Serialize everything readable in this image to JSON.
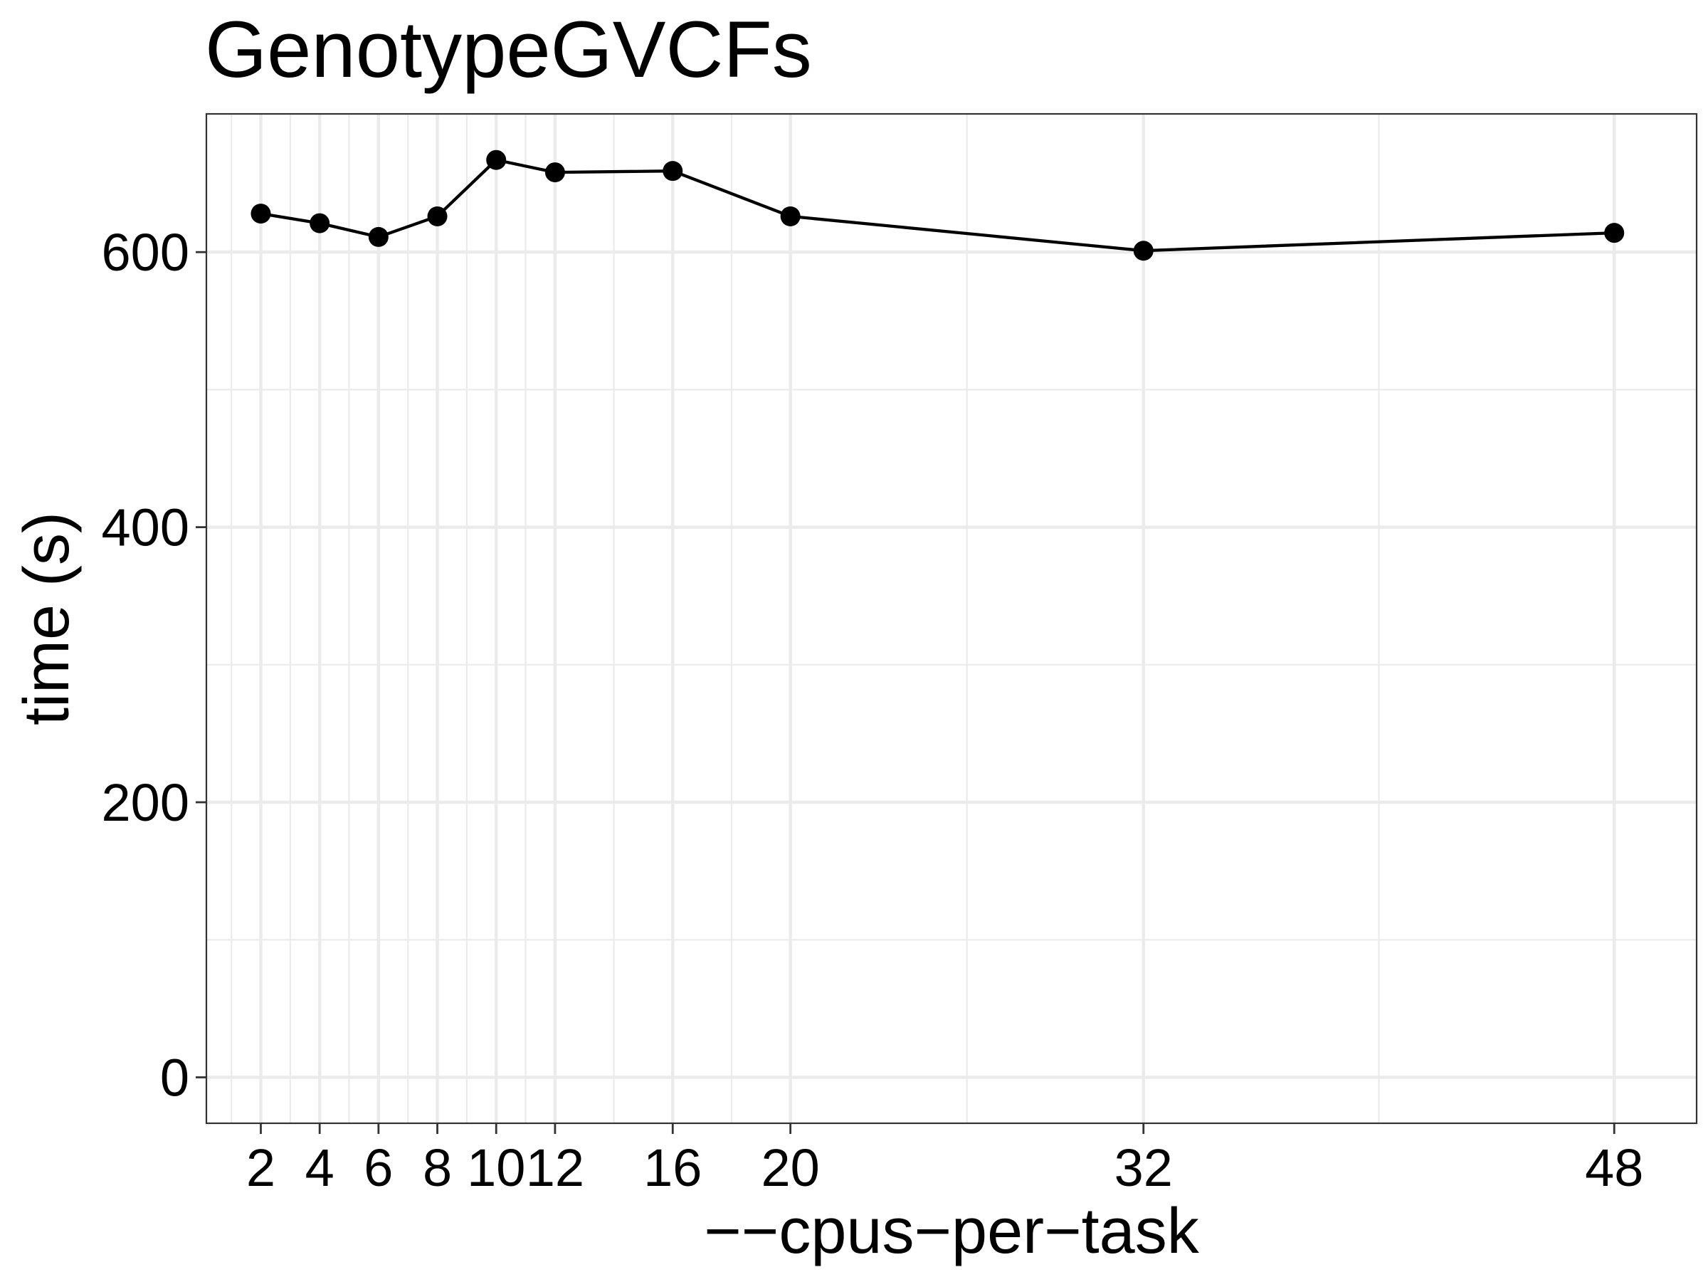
{
  "chart_data": {
    "type": "line",
    "title": "GenotypeGVCFs",
    "xlabel": "−−cpus−per−task",
    "ylabel": "time (s)",
    "x": [
      2,
      4,
      6,
      8,
      10,
      12,
      16,
      20,
      32,
      48
    ],
    "series": [
      {
        "values": [
          628,
          621,
          611,
          626,
          667,
          658,
          659,
          626,
          601,
          614
        ]
      }
    ],
    "x_ticks": [
      2,
      4,
      6,
      8,
      10,
      12,
      16,
      20,
      32,
      48
    ],
    "x_tick_labels": [
      "2",
      "4",
      "6",
      "8",
      "10",
      "12",
      "16",
      "20",
      "32",
      "48"
    ],
    "y_ticks": [
      0,
      200,
      400,
      600
    ],
    "y_tick_labels": [
      "0",
      "200",
      "400",
      "600"
    ],
    "xlim": [
      0.15,
      50.8
    ],
    "ylim": [
      -33.4,
      700.5
    ],
    "grid": true,
    "line_color": "#000000",
    "point_color": "#000000",
    "background": "#ffffff",
    "grid_color": "#ebebeb"
  }
}
